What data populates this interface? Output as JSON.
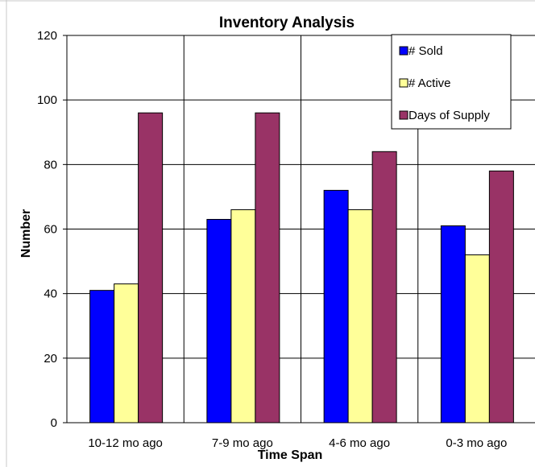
{
  "chart_data": {
    "type": "bar",
    "title": "Inventory Analysis",
    "xlabel": "Time Span",
    "ylabel": "Number",
    "categories": [
      "10-12 mo ago",
      "7-9 mo ago",
      "4-6 mo ago",
      "0-3 mo ago"
    ],
    "series": [
      {
        "name": "# Sold",
        "values": [
          41,
          63,
          72,
          61
        ],
        "color": "#0000FF"
      },
      {
        "name": "# Active",
        "values": [
          43,
          66,
          66,
          52
        ],
        "color": "#FFFF99"
      },
      {
        "name": "Days of Supply",
        "values": [
          96,
          96,
          84,
          78
        ],
        "color": "#993366"
      }
    ],
    "ylim": [
      0,
      120
    ],
    "yticks": [
      0,
      20,
      40,
      60,
      80,
      100,
      120
    ],
    "grid": true,
    "legend": "top-right"
  }
}
